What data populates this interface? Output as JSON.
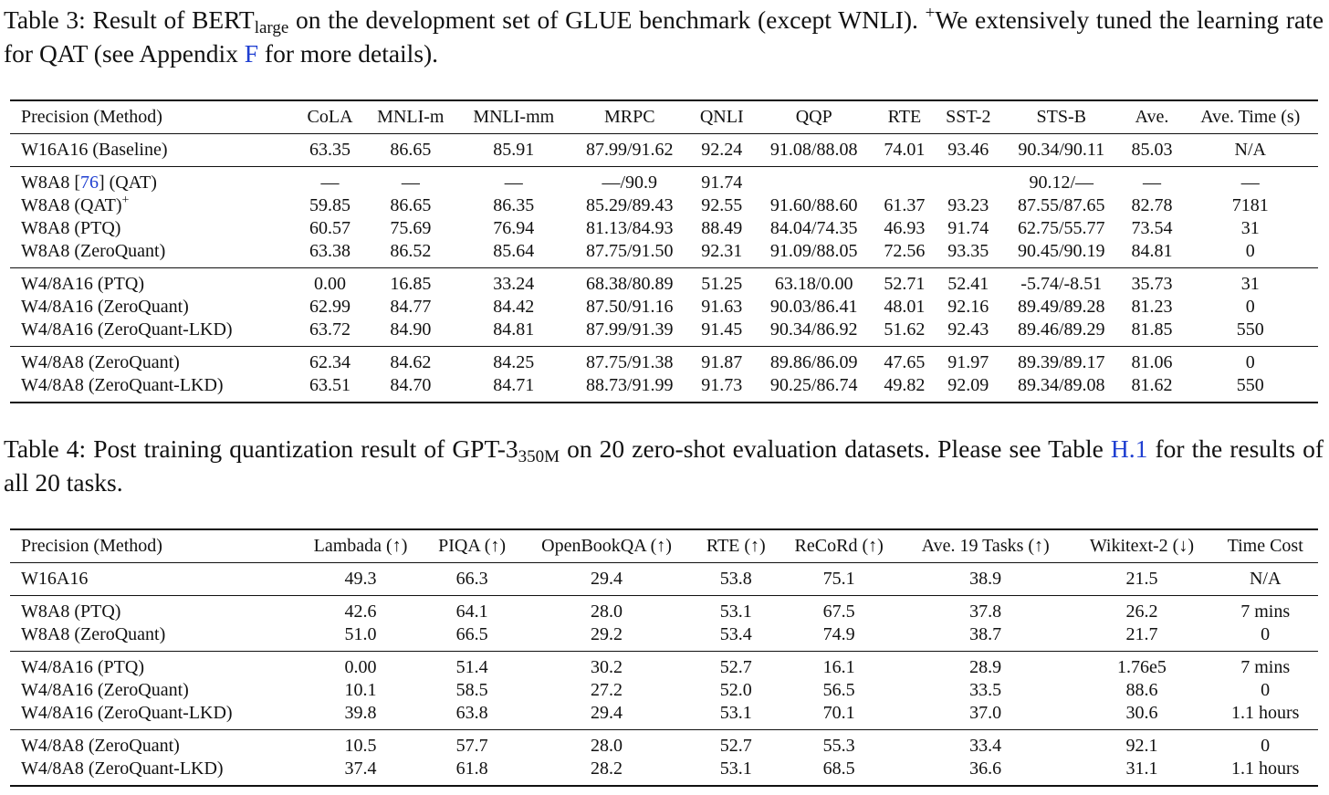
{
  "table3": {
    "caption": {
      "label": "Table 3:",
      "t1": "Result of BERT",
      "sub": "large",
      "t2": "on the development set of GLUE benchmark (except WNLI).",
      "plus": "+",
      "t3": "We extensively tuned the learning rate for QAT (see Appendix",
      "ref": "F",
      "t4": "for more details)."
    },
    "headers": [
      "Precision (Method)",
      "CoLA",
      "MNLI-m",
      "MNLI-mm",
      "MRPC",
      "QNLI",
      "QQP",
      "RTE",
      "SST-2",
      "STS-B",
      "Ave.",
      "Ave. Time (s)"
    ],
    "groups": [
      [
        [
          "W16A16 (Baseline)",
          "63.35",
          "86.65",
          "85.91",
          "87.99/91.62",
          "92.24",
          "91.08/88.08",
          "74.01",
          "93.46",
          "90.34/90.11",
          "85.03",
          "N/A"
        ]
      ],
      [
        [
          "W8A8 [76] (QAT)",
          "—",
          "—",
          "—",
          "—/90.9",
          "91.74",
          "",
          "",
          "",
          "90.12/—",
          "—",
          "—"
        ],
        [
          "W8A8 (QAT)+",
          "59.85",
          "86.65",
          "86.35",
          "85.29/89.43",
          "92.55",
          "91.60/88.60",
          "61.37",
          "93.23",
          "87.55/87.65",
          "82.78",
          "7181"
        ],
        [
          "W8A8 (PTQ)",
          "60.57",
          "75.69",
          "76.94",
          "81.13/84.93",
          "88.49",
          "84.04/74.35",
          "46.93",
          "91.74",
          "62.75/55.77",
          "73.54",
          "31"
        ],
        [
          "W8A8 (ZeroQuant)",
          "63.38",
          "86.52",
          "85.64",
          "87.75/91.50",
          "92.31",
          "91.09/88.05",
          "72.56",
          "93.35",
          "90.45/90.19",
          "84.81",
          "0"
        ]
      ],
      [
        [
          "W4/8A16 (PTQ)",
          "0.00",
          "16.85",
          "33.24",
          "68.38/80.89",
          "51.25",
          "63.18/0.00",
          "52.71",
          "52.41",
          "-5.74/-8.51",
          "35.73",
          "31"
        ],
        [
          "W4/8A16 (ZeroQuant)",
          "62.99",
          "84.77",
          "84.42",
          "87.50/91.16",
          "91.63",
          "90.03/86.41",
          "48.01",
          "92.16",
          "89.49/89.28",
          "81.23",
          "0"
        ],
        [
          "W4/8A16 (ZeroQuant-LKD)",
          "63.72",
          "84.90",
          "84.81",
          "87.99/91.39",
          "91.45",
          "90.34/86.92",
          "51.62",
          "92.43",
          "89.46/89.29",
          "81.85",
          "550"
        ]
      ],
      [
        [
          "W4/8A8 (ZeroQuant)",
          "62.34",
          "84.62",
          "84.25",
          "87.75/91.38",
          "91.87",
          "89.86/86.09",
          "47.65",
          "91.97",
          "89.39/89.17",
          "81.06",
          "0"
        ],
        [
          "W4/8A8 (ZeroQuant-LKD)",
          "63.51",
          "84.70",
          "84.71",
          "88.73/91.99",
          "91.73",
          "90.25/86.74",
          "49.82",
          "92.09",
          "89.34/89.08",
          "81.62",
          "550"
        ]
      ]
    ]
  },
  "table4": {
    "caption": {
      "label": "Table 4:",
      "t1": "Post training quantization result of GPT-3",
      "sub": "350M",
      "t2": "on 20 zero-shot evaluation datasets. Please see Table",
      "ref": "H.1",
      "t3": "for the results of all 20 tasks."
    },
    "headers": [
      "Precision (Method)",
      "Lambada (↑)",
      "PIQA (↑)",
      "OpenBookQA (↑)",
      "RTE (↑)",
      "ReCoRd (↑)",
      "Ave. 19 Tasks (↑)",
      "Wikitext-2 (↓)",
      "Time Cost"
    ],
    "groups": [
      [
        [
          "W16A16",
          "49.3",
          "66.3",
          "29.4",
          "53.8",
          "75.1",
          "38.9",
          "21.5",
          "N/A"
        ]
      ],
      [
        [
          "W8A8 (PTQ)",
          "42.6",
          "64.1",
          "28.0",
          "53.1",
          "67.5",
          "37.8",
          "26.2",
          "7 mins"
        ],
        [
          "W8A8 (ZeroQuant)",
          "51.0",
          "66.5",
          "29.2",
          "53.4",
          "74.9",
          "38.7",
          "21.7",
          "0"
        ]
      ],
      [
        [
          "W4/8A16 (PTQ)",
          "0.00",
          "51.4",
          "30.2",
          "52.7",
          "16.1",
          "28.9",
          "1.76e5",
          "7 mins"
        ],
        [
          "W4/8A16 (ZeroQuant)",
          "10.1",
          "58.5",
          "27.2",
          "52.0",
          "56.5",
          "33.5",
          "88.6",
          "0"
        ],
        [
          "W4/8A16 (ZeroQuant-LKD)",
          "39.8",
          "63.8",
          "29.4",
          "53.1",
          "70.1",
          "37.0",
          "30.6",
          "1.1 hours"
        ]
      ],
      [
        [
          "W4/8A8 (ZeroQuant)",
          "10.5",
          "57.7",
          "28.0",
          "52.7",
          "55.3",
          "33.4",
          "92.1",
          "0"
        ],
        [
          "W4/8A8 (ZeroQuant-LKD)",
          "37.4",
          "61.8",
          "28.2",
          "53.1",
          "68.5",
          "36.6",
          "31.1",
          "1.1 hours"
        ]
      ]
    ]
  }
}
